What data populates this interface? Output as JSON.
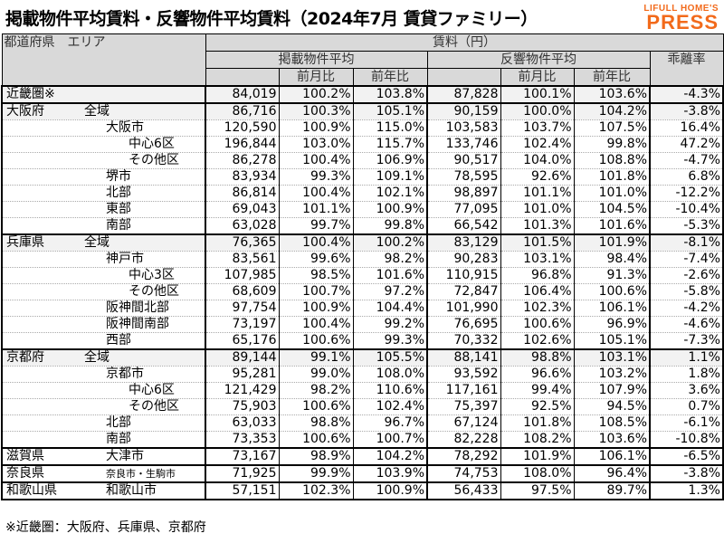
{
  "title": "掲載物件平均賃料・反響物件平均賃料（2024年7月 賃貸ファミリー）",
  "logo": {
    "line1": "LIFULL HOME'S",
    "line2": "PRESS",
    "color": "#f26a1b"
  },
  "header": {
    "region": "都道府県　エリア",
    "rent": "賃料（円）",
    "listed": "掲載物件平均",
    "inquired": "反響物件平均",
    "gap": "乖離率",
    "mom": "前月比",
    "yoy": "前年比"
  },
  "rows": [
    {
      "pref": "近畿圏※",
      "area": "",
      "level": 0,
      "v": [
        "84,019",
        "100.2%",
        "103.8%",
        "87,828",
        "100.1%",
        "103.6%",
        "-4.3%"
      ]
    },
    {
      "pref": "大阪府",
      "area": "全域",
      "level": 1,
      "v": [
        "86,716",
        "100.3%",
        "105.1%",
        "90,159",
        "100.0%",
        "104.2%",
        "-3.8%"
      ]
    },
    {
      "pref": "",
      "area": "大阪市",
      "level": 2,
      "v": [
        "120,590",
        "100.9%",
        "115.0%",
        "103,583",
        "103.7%",
        "107.5%",
        "16.4%"
      ]
    },
    {
      "pref": "",
      "area": "中心6区",
      "level": 3,
      "v": [
        "196,844",
        "103.0%",
        "115.7%",
        "133,746",
        "102.4%",
        "99.8%",
        "47.2%"
      ]
    },
    {
      "pref": "",
      "area": "その他区",
      "level": 3,
      "v": [
        "86,278",
        "100.4%",
        "106.9%",
        "90,517",
        "104.0%",
        "108.8%",
        "-4.7%"
      ]
    },
    {
      "pref": "",
      "area": "堺市",
      "level": 2,
      "v": [
        "83,934",
        "99.3%",
        "109.1%",
        "78,595",
        "92.6%",
        "101.8%",
        "6.8%"
      ]
    },
    {
      "pref": "",
      "area": "北部",
      "level": 2,
      "v": [
        "86,814",
        "100.4%",
        "102.1%",
        "98,897",
        "101.1%",
        "101.0%",
        "-12.2%"
      ]
    },
    {
      "pref": "",
      "area": "東部",
      "level": 2,
      "v": [
        "69,043",
        "101.1%",
        "100.9%",
        "77,095",
        "101.0%",
        "104.5%",
        "-10.4%"
      ]
    },
    {
      "pref": "",
      "area": "南部",
      "level": 2,
      "v": [
        "63,028",
        "99.7%",
        "99.8%",
        "66,542",
        "101.3%",
        "101.6%",
        "-5.3%"
      ]
    },
    {
      "pref": "兵庫県",
      "area": "全域",
      "level": 1,
      "v": [
        "76,365",
        "100.4%",
        "100.2%",
        "83,129",
        "101.5%",
        "101.9%",
        "-8.1%"
      ]
    },
    {
      "pref": "",
      "area": "神戸市",
      "level": 2,
      "v": [
        "83,561",
        "99.6%",
        "98.2%",
        "90,283",
        "103.1%",
        "98.4%",
        "-7.4%"
      ]
    },
    {
      "pref": "",
      "area": "中心3区",
      "level": 3,
      "v": [
        "107,985",
        "98.5%",
        "101.6%",
        "110,915",
        "96.8%",
        "91.3%",
        "-2.6%"
      ]
    },
    {
      "pref": "",
      "area": "その他区",
      "level": 3,
      "v": [
        "68,609",
        "100.7%",
        "97.2%",
        "72,847",
        "106.4%",
        "100.6%",
        "-5.8%"
      ]
    },
    {
      "pref": "",
      "area": "阪神間北部",
      "level": 2,
      "v": [
        "97,754",
        "100.9%",
        "104.4%",
        "101,990",
        "102.3%",
        "106.1%",
        "-4.2%"
      ]
    },
    {
      "pref": "",
      "area": "阪神間南部",
      "level": 2,
      "v": [
        "73,197",
        "100.4%",
        "99.2%",
        "76,695",
        "100.6%",
        "96.9%",
        "-4.6%"
      ]
    },
    {
      "pref": "",
      "area": "西部",
      "level": 2,
      "v": [
        "65,176",
        "100.6%",
        "99.3%",
        "70,332",
        "102.6%",
        "105.1%",
        "-7.3%"
      ]
    },
    {
      "pref": "京都府",
      "area": "全域",
      "level": 1,
      "v": [
        "89,144",
        "99.1%",
        "105.5%",
        "88,141",
        "98.8%",
        "103.1%",
        "1.1%"
      ]
    },
    {
      "pref": "",
      "area": "京都市",
      "level": 2,
      "v": [
        "95,281",
        "99.0%",
        "108.0%",
        "93,592",
        "96.6%",
        "103.2%",
        "1.8%"
      ]
    },
    {
      "pref": "",
      "area": "中心6区",
      "level": 3,
      "v": [
        "121,429",
        "98.2%",
        "110.6%",
        "117,161",
        "99.4%",
        "107.9%",
        "3.6%"
      ]
    },
    {
      "pref": "",
      "area": "その他区",
      "level": 3,
      "v": [
        "75,903",
        "100.6%",
        "102.4%",
        "75,397",
        "92.5%",
        "94.5%",
        "0.7%"
      ]
    },
    {
      "pref": "",
      "area": "北部",
      "level": 2,
      "v": [
        "63,033",
        "98.8%",
        "96.7%",
        "67,124",
        "101.8%",
        "108.5%",
        "-6.1%"
      ]
    },
    {
      "pref": "",
      "area": "南部",
      "level": 2,
      "v": [
        "73,353",
        "100.6%",
        "100.7%",
        "82,228",
        "108.2%",
        "103.6%",
        "-10.8%"
      ]
    },
    {
      "pref": "滋賀県",
      "area": "大津市",
      "level": 2,
      "v": [
        "73,167",
        "98.9%",
        "104.2%",
        "78,292",
        "101.9%",
        "106.1%",
        "-6.5%"
      ]
    },
    {
      "pref": "奈良県",
      "area": "奈良市・生駒市",
      "level": 2,
      "v": [
        "71,925",
        "99.9%",
        "103.9%",
        "74,753",
        "108.0%",
        "96.4%",
        "-3.8%"
      ]
    },
    {
      "pref": "和歌山県",
      "area": "和歌山市",
      "level": 2,
      "v": [
        "57,151",
        "102.3%",
        "100.9%",
        "56,433",
        "97.5%",
        "89.7%",
        "1.3%"
      ]
    }
  ],
  "footnote": "※近畿圏：大阪府、兵庫県、京都府"
}
